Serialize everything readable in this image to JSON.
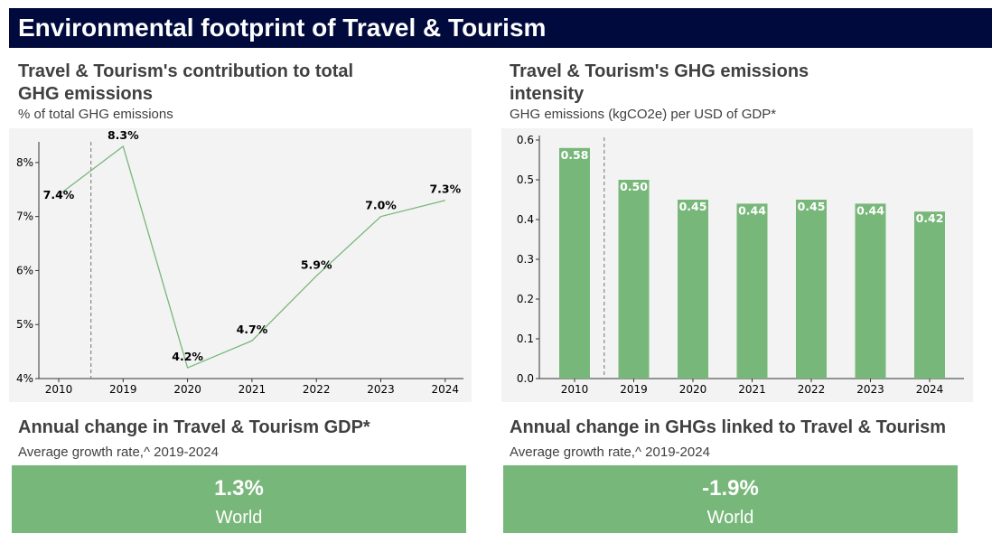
{
  "page_title": "Environmental footprint of Travel & Tourism",
  "left_panel": {
    "title": "Travel & Tourism's contribution to total GHG emissions",
    "subtitle": "% of total GHG emissions"
  },
  "right_panel": {
    "title": "Travel & Tourism's GHG emissions intensity",
    "subtitle": "GHG emissions (kgCO2e) per USD of GDP*"
  },
  "kpi_left": {
    "title": "Annual change in Travel & Tourism GDP*",
    "subtitle": "Average growth rate,^ 2019-2024",
    "value": "1.3%",
    "label": "World"
  },
  "kpi_right": {
    "title": "Annual change in GHGs linked to Travel & Tourism",
    "subtitle": "Average growth rate,^ 2019-2024",
    "value": "-1.9%",
    "label": "World"
  },
  "colors": {
    "banner": "#000a3c",
    "accent": "#78b77a",
    "chart_bg": "#f3f3f3",
    "text": "#404040"
  },
  "chart_data": [
    {
      "type": "line",
      "categories": [
        "2010",
        "2019",
        "2020",
        "2021",
        "2022",
        "2023",
        "2024"
      ],
      "values": [
        7.4,
        8.3,
        4.2,
        4.7,
        5.9,
        7.0,
        7.3
      ],
      "data_labels": [
        "7.4%",
        "8.3%",
        "4.2%",
        "4.7%",
        "5.9%",
        "7.0%",
        "7.3%"
      ],
      "yticks": [
        4,
        5,
        6,
        7,
        8
      ],
      "ytick_labels": [
        "4%",
        "5%",
        "6%",
        "7%",
        "8%"
      ],
      "ylim": [
        4,
        8.5
      ],
      "separator_after_index": 0,
      "color": "#78b77a"
    },
    {
      "type": "bar",
      "categories": [
        "2010",
        "2019",
        "2020",
        "2021",
        "2022",
        "2023",
        "2024"
      ],
      "values": [
        0.58,
        0.5,
        0.45,
        0.44,
        0.45,
        0.44,
        0.42
      ],
      "data_labels": [
        "0.58",
        "0.50",
        "0.45",
        "0.44",
        "0.45",
        "0.44",
        "0.42"
      ],
      "yticks": [
        0,
        0.1,
        0.2,
        0.3,
        0.4,
        0.5,
        0.6
      ],
      "ytick_labels": [
        "0.0",
        "0.1",
        "0.2",
        "0.3",
        "0.4",
        "0.5",
        "0.6"
      ],
      "ylim": [
        0,
        0.6
      ],
      "separator_after_index": 0,
      "color": "#78b77a"
    }
  ]
}
